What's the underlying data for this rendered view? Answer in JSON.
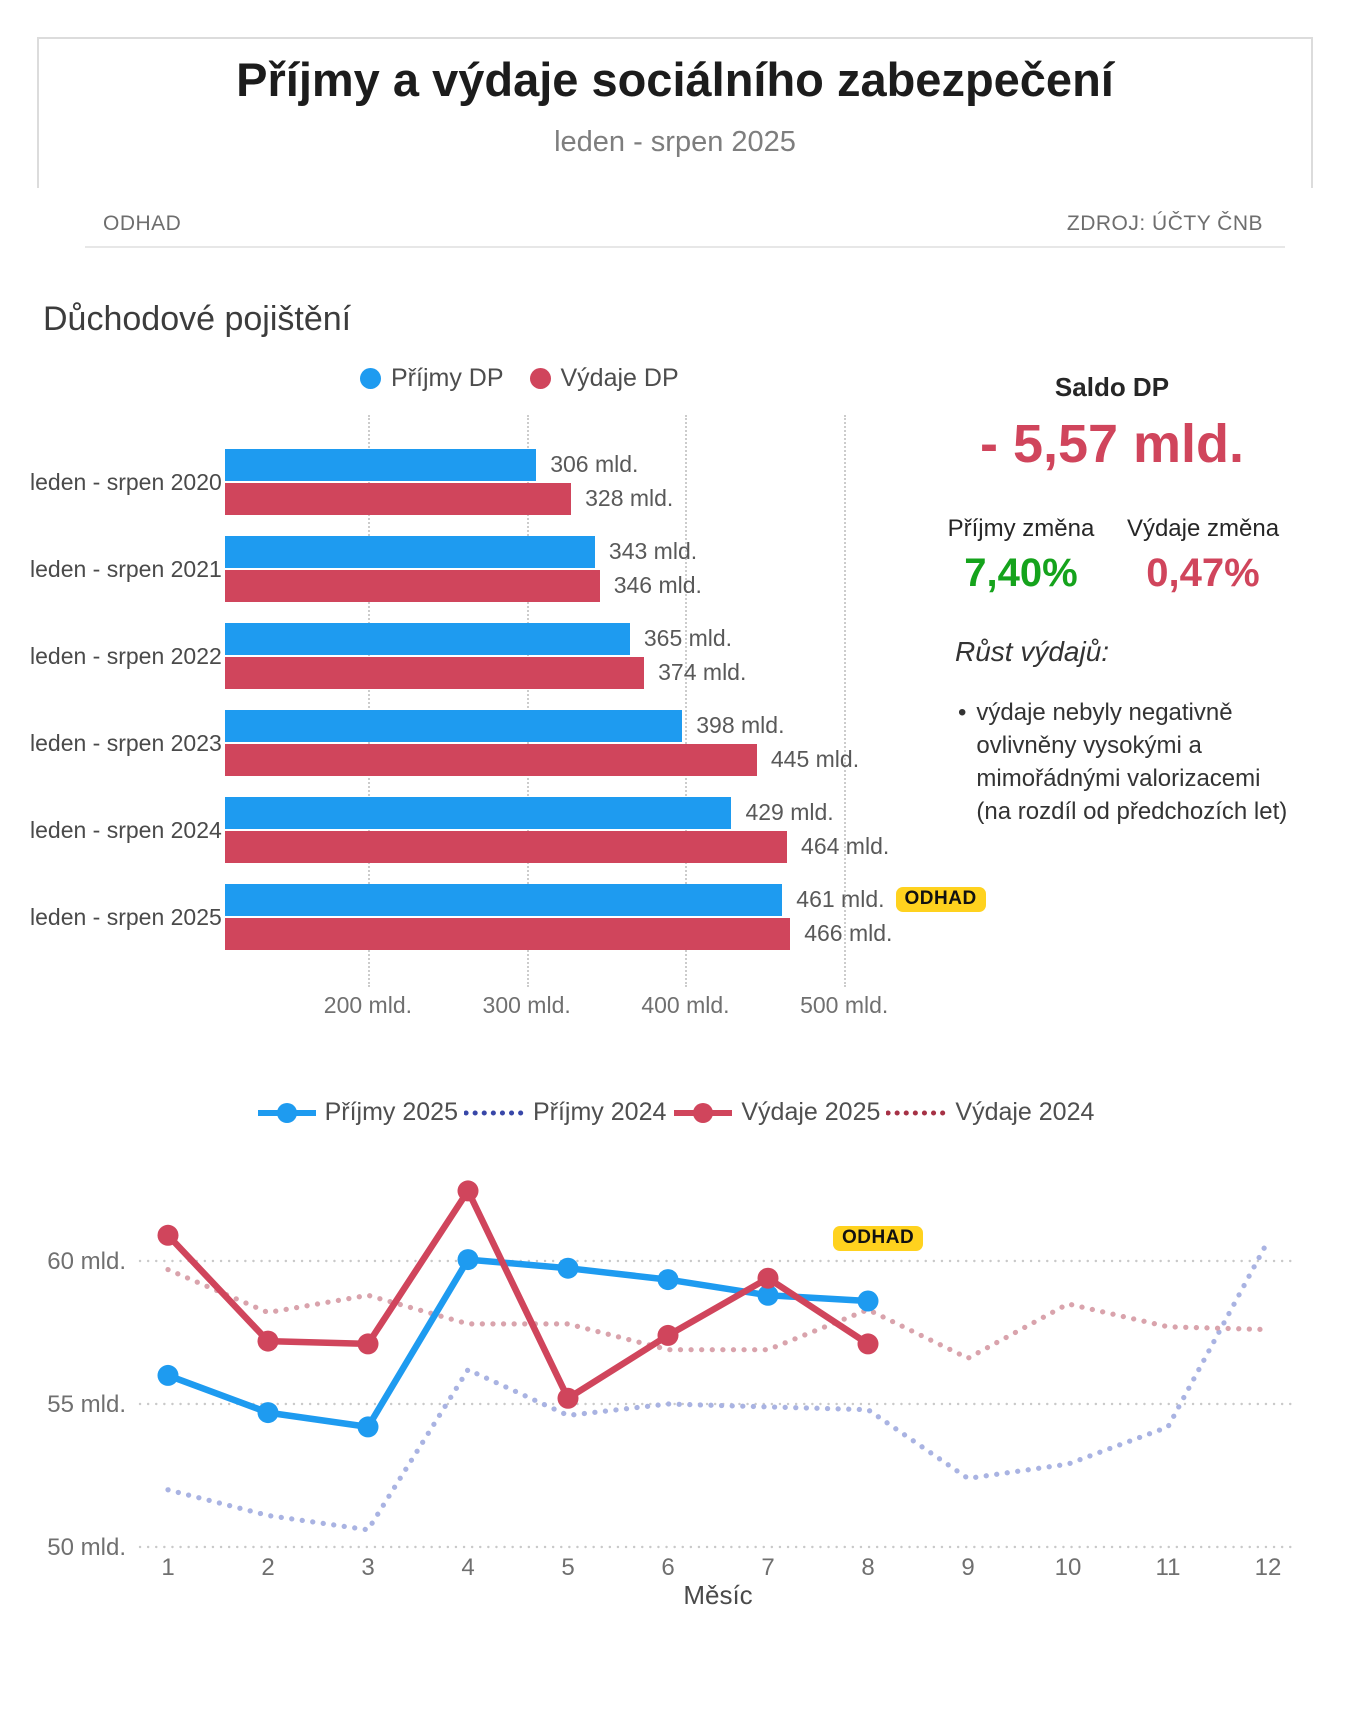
{
  "header": {
    "title": "Příjmy a výdaje sociálního zabezpečení",
    "subtitle": "leden - srpen 2025",
    "note": "ODHAD",
    "source": "ZDROJ: ÚČTY ČNB"
  },
  "section_title": "Důchodové pojištění",
  "saldo_panel": {
    "title": "Saldo DP",
    "value": "- 5,57 mld.",
    "value_color": "#D0455C",
    "income_label": "Příjmy změna",
    "income_value": "7,40%",
    "income_color": "#15A31C",
    "expense_label": "Výdaje změna",
    "expense_value": "0,47%",
    "expense_color": "#D0455C",
    "note_heading": "Růst výdajů:",
    "note_bullet": "výdaje nebyly negativně ovlivněny vysokými a mimořádnými valorizacemi (na rozdíl od předchozích let)"
  },
  "chart_data": [
    {
      "type": "bar",
      "orientation": "horizontal",
      "title": "Důchodové pojištění",
      "unit": "mld.",
      "categories": [
        "leden - srpen 2020",
        "leden - srpen 2021",
        "leden - srpen 2022",
        "leden - srpen 2023",
        "leden - srpen 2024",
        "leden - srpen 2025"
      ],
      "series": [
        {
          "name": "Příjmy DP",
          "color": "#1E9BF0",
          "values": [
            306,
            343,
            365,
            398,
            429,
            461
          ],
          "labels": [
            "306 mld.",
            "343 mld.",
            "365 mld.",
            "398 mld.",
            "429 mld.",
            "461 mld."
          ]
        },
        {
          "name": "Výdaje DP",
          "color": "#D0455C",
          "values": [
            328,
            346,
            374,
            445,
            464,
            466
          ],
          "labels": [
            "328 mld.",
            "346 mld.",
            "374 mld.",
            "445 mld.",
            "464 mld.",
            "466 mld."
          ]
        }
      ],
      "x_axis": {
        "min": 110,
        "max": 565,
        "grid": true,
        "ticks": [
          {
            "v": 200,
            "label": "200 mld."
          },
          {
            "v": 300,
            "label": "300 mld."
          },
          {
            "v": 400,
            "label": "400 mld."
          },
          {
            "v": 500,
            "label": "500 mld."
          }
        ]
      },
      "estimate_label": "ODHAD",
      "estimate_row": 5,
      "estimate_series": 0
    },
    {
      "type": "line",
      "x": [
        1,
        2,
        3,
        4,
        5,
        6,
        7,
        8,
        9,
        10,
        11,
        12
      ],
      "xlabel": "Měsíc",
      "unit": "mld.",
      "y_axis": {
        "min": 48.5,
        "max": 63,
        "grid": true,
        "ticks": [
          {
            "v": 60,
            "label": "60 mld."
          },
          {
            "v": 55,
            "label": "55 mld."
          },
          {
            "v": 50,
            "label": "50 mld."
          }
        ]
      },
      "series": [
        {
          "name": "Příjmy 2025",
          "style": "solid",
          "color": "#1E9BF0",
          "legend_color": "#1E9BF0",
          "values": [
            56.0,
            54.7,
            54.2,
            60.05,
            59.75,
            59.35,
            58.8,
            58.6
          ]
        },
        {
          "name": "Příjmy 2024",
          "style": "dotted",
          "color": "#A9B3E2",
          "legend_color": "#3847A8",
          "values": [
            52.0,
            51.1,
            50.6,
            56.2,
            54.6,
            55.0,
            54.9,
            54.8,
            52.4,
            52.9,
            54.2,
            60.7
          ]
        },
        {
          "name": "Výdaje 2025",
          "style": "solid",
          "color": "#D0455C",
          "legend_color": "#D0455C",
          "values": [
            60.9,
            57.2,
            57.1,
            62.45,
            55.2,
            57.4,
            59.4,
            57.1
          ]
        },
        {
          "name": "Výdaje 2024",
          "style": "dotted",
          "color": "#D9A3AC",
          "legend_color": "#A63246",
          "values": [
            59.7,
            58.2,
            58.8,
            57.8,
            57.8,
            56.9,
            56.9,
            58.3,
            56.6,
            58.5,
            57.7,
            57.6
          ]
        }
      ],
      "estimate_label": "ODHAD",
      "legend_position": "top"
    }
  ]
}
